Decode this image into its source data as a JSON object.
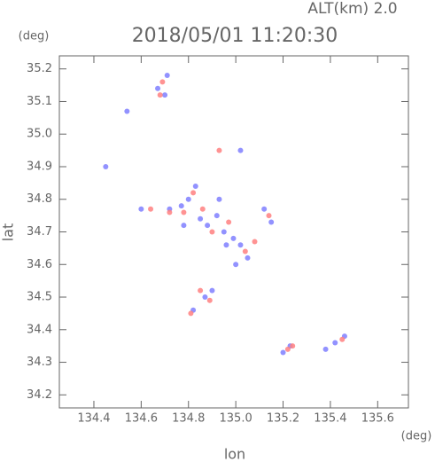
{
  "chart_data": {
    "type": "scatter",
    "title": "2018/05/01 11:20:30",
    "subtitle": "ALT(km) 2.0",
    "x_label": "lon",
    "y_label": "lat",
    "x_unit": "(deg)",
    "y_unit": "(deg)",
    "xlim": [
      134.254,
      135.73
    ],
    "ylim": [
      34.16,
      35.24
    ],
    "xticks": [
      {
        "value": 134.4,
        "label": "134.4"
      },
      {
        "value": 134.6,
        "label": "134.6"
      },
      {
        "value": 134.8,
        "label": "134.8"
      },
      {
        "value": 135.0,
        "label": "135.0"
      },
      {
        "value": 135.2,
        "label": "135.2"
      },
      {
        "value": 135.4,
        "label": "135.4"
      },
      {
        "value": 135.6,
        "label": "135.6"
      }
    ],
    "yticks": [
      {
        "value": 34.2,
        "label": "34.2"
      },
      {
        "value": 34.3,
        "label": "34.3"
      },
      34.4,
      34.5,
      34.6,
      34.7,
      34.8,
      34.9,
      {
        "value": 35.0,
        "label": "35.0"
      },
      35.1,
      35.2
    ],
    "series": [
      {
        "color": "#7f7fff",
        "x": [
          134.71,
          134.67,
          134.7,
          134.54,
          134.83,
          134.8,
          134.77,
          134.72,
          134.85,
          134.88,
          134.92,
          134.95,
          134.99,
          135.02,
          135.05,
          135.0,
          134.9,
          134.87,
          134.82,
          135.12,
          135.15,
          135.02,
          134.45,
          135.23,
          135.2,
          135.38,
          135.42,
          135.46,
          134.93,
          134.6,
          134.78,
          134.96
        ],
        "values": [
          35.18,
          35.14,
          35.12,
          35.07,
          34.84,
          34.8,
          34.78,
          34.77,
          34.74,
          34.72,
          34.75,
          34.7,
          34.68,
          34.66,
          34.62,
          34.6,
          34.52,
          34.5,
          34.46,
          34.77,
          34.73,
          34.95,
          34.9,
          34.35,
          34.33,
          34.34,
          34.36,
          34.38,
          34.8,
          34.77,
          34.72,
          34.66
        ]
      },
      {
        "color": "#ff8080",
        "x": [
          134.69,
          134.68,
          134.93,
          134.82,
          134.78,
          134.86,
          134.9,
          134.97,
          135.04,
          135.08,
          134.89,
          134.85,
          134.64,
          134.72,
          135.24,
          135.22,
          135.45,
          135.14,
          134.81
        ],
        "values": [
          35.16,
          35.12,
          34.95,
          34.82,
          34.76,
          34.77,
          34.7,
          34.73,
          34.64,
          34.67,
          34.49,
          34.52,
          34.77,
          34.76,
          34.35,
          34.34,
          34.37,
          34.75,
          34.45
        ]
      }
    ]
  }
}
